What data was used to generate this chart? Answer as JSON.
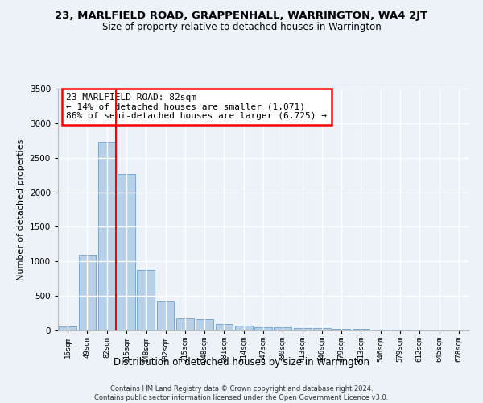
{
  "title": "23, MARLFIELD ROAD, GRAPPENHALL, WARRINGTON, WA4 2JT",
  "subtitle": "Size of property relative to detached houses in Warrington",
  "xlabel": "Distribution of detached houses by size in Warrington",
  "ylabel": "Number of detached properties",
  "categories": [
    "16sqm",
    "49sqm",
    "82sqm",
    "115sqm",
    "148sqm",
    "182sqm",
    "215sqm",
    "248sqm",
    "281sqm",
    "314sqm",
    "347sqm",
    "380sqm",
    "413sqm",
    "446sqm",
    "479sqm",
    "513sqm",
    "546sqm",
    "579sqm",
    "612sqm",
    "645sqm",
    "678sqm"
  ],
  "values": [
    55,
    1100,
    2730,
    2260,
    870,
    420,
    175,
    165,
    90,
    65,
    50,
    45,
    35,
    30,
    22,
    18,
    12,
    8,
    5,
    3,
    2
  ],
  "bar_color": "#b8cfe8",
  "bar_edge_color": "#6a9fd0",
  "red_line_index": 2,
  "annotation_text": "23 MARLFIELD ROAD: 82sqm\n← 14% of detached houses are smaller (1,071)\n86% of semi-detached houses are larger (6,725) →",
  "annotation_box_color": "white",
  "annotation_box_edge": "red",
  "ylim": [
    0,
    3500
  ],
  "yticks": [
    0,
    500,
    1000,
    1500,
    2000,
    2500,
    3000,
    3500
  ],
  "footer": "Contains HM Land Registry data © Crown copyright and database right 2024.\nContains public sector information licensed under the Open Government Licence v3.0.",
  "bg_color": "#edf2f9",
  "plot_bg_color": "#edf2f9"
}
